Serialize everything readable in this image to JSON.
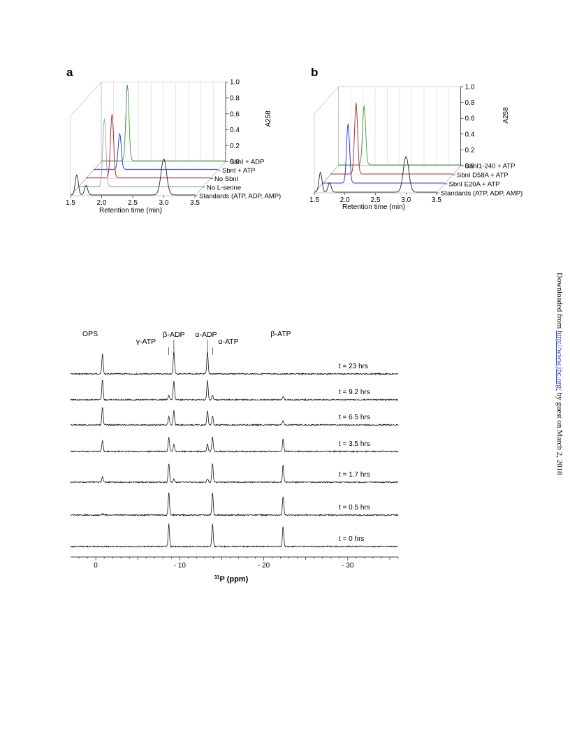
{
  "colors": {
    "green": "#3a9a3a",
    "red": "#b02020",
    "blue": "#1e2ee0",
    "grey": "#a0a0a0",
    "black": "#222222"
  },
  "panel_a": {
    "label": "a",
    "legend": [
      "SbnI + ADP",
      "SbnI + ATP",
      "No SbnI",
      "No L-serine",
      "Standards (ATP, ADP, AMP)"
    ],
    "xlabel": "Retention time (min)",
    "x_ticks": [
      "1.5",
      "2.0",
      "2.5",
      "3.0",
      "3.5"
    ],
    "z_label": "A258",
    "z_ticks": [
      "0.0",
      "0.2",
      "0.4",
      "0.6",
      "0.8",
      "1.0"
    ]
  },
  "panel_b": {
    "label": "b",
    "legend": [
      "SbnI1-240 + ATP",
      "SbnI D58A + ATP",
      "SbnI E20A + ATP",
      "Standards (ATP, ADP, AMP)"
    ],
    "xlabel": "Retention time (min)",
    "x_ticks": [
      "1.5",
      "2.0",
      "2.5",
      "3.0",
      "3.5"
    ],
    "z_label": "A258",
    "z_ticks": [
      "0.0",
      "0.2",
      "0.4",
      "0.6",
      "0.8",
      "1.0"
    ]
  },
  "nmr": {
    "peak_labels": [
      "OPS",
      "γ-ATP",
      "β-ADP",
      "α-ADP",
      "α-ATP",
      "β-ATP"
    ],
    "time_labels": [
      "t = 23 hrs",
      "t = 9.2 hrs",
      "t = 6.5 hrs",
      "t = 3.5 hrs",
      "t = 1.7 hrs",
      "t = 0.5 hrs",
      "t = 0 hrs"
    ],
    "x_ticks": [
      "0",
      "- 10",
      "- 20",
      "- 30"
    ],
    "xlabel_sup": "31",
    "xlabel_rest": "P (ppm)"
  },
  "chart_data": [
    {
      "type": "line",
      "panel": "a",
      "xlabel": "Retention time (min)",
      "zlabel": "A258",
      "xlim": [
        1.5,
        3.5
      ],
      "zlim": [
        0.0,
        1.0
      ],
      "series": [
        {
          "name": "SbnI + ADP",
          "color": "#3a9a3a",
          "peaks": [
            {
              "x": 1.92,
              "y": 0.95
            }
          ]
        },
        {
          "name": "SbnI + ATP",
          "color": "#1e2ee0",
          "peaks": [
            {
              "x": 1.92,
              "y": 0.45
            }
          ]
        },
        {
          "name": "No SbnI",
          "color": "#b02020",
          "peaks": [
            {
              "x": 1.92,
              "y": 0.8
            }
          ]
        },
        {
          "name": "No L-serine",
          "color": "#a0a0a0",
          "peaks": [
            {
              "x": 1.92,
              "y": 0.85
            }
          ]
        },
        {
          "name": "Standards (ATP, ADP, AMP)",
          "color": "#222222",
          "peaks": [
            {
              "x": 1.6,
              "y": 0.25
            },
            {
              "x": 1.75,
              "y": 0.12
            },
            {
              "x": 3.0,
              "y": 0.45
            }
          ]
        }
      ]
    },
    {
      "type": "line",
      "panel": "b",
      "xlabel": "Retention time (min)",
      "zlabel": "A258",
      "xlim": [
        1.5,
        3.5
      ],
      "zlim": [
        0.0,
        1.0
      ],
      "series": [
        {
          "name": "SbnI1-240 + ATP",
          "color": "#3a9a3a",
          "peaks": [
            {
              "x": 1.92,
              "y": 0.75
            }
          ]
        },
        {
          "name": "SbnI D58A + ATP",
          "color": "#b02020",
          "peaks": [
            {
              "x": 1.92,
              "y": 0.9
            }
          ]
        },
        {
          "name": "SbnI E20A + ATP",
          "color": "#1e2ee0",
          "peaks": [
            {
              "x": 1.92,
              "y": 0.75
            }
          ]
        },
        {
          "name": "Standards (ATP, ADP, AMP)",
          "color": "#222222",
          "peaks": [
            {
              "x": 1.6,
              "y": 0.25
            },
            {
              "x": 1.75,
              "y": 0.12
            },
            {
              "x": 3.0,
              "y": 0.45
            }
          ]
        }
      ]
    },
    {
      "type": "line",
      "panel": "nmr",
      "xlabel": "31P (ppm)",
      "xlim": [
        3,
        -36
      ],
      "peak_positions": {
        "OPS": -0.8,
        "γ-ATP": -8.7,
        "β-ADP": -9.3,
        "α-ADP": -13.3,
        "α-ATP": -13.9,
        "β-ATP": -22.3
      },
      "series": [
        {
          "name": "t = 23 hrs",
          "heights": {
            "OPS": 0.9,
            "γ-ATP": 0.0,
            "β-ADP": 1.0,
            "α-ADP": 1.0,
            "α-ATP": 0.0,
            "β-ATP": 0.0
          }
        },
        {
          "name": "t = 9.2 hrs",
          "heights": {
            "OPS": 0.9,
            "γ-ATP": 0.2,
            "β-ADP": 0.85,
            "α-ADP": 0.85,
            "α-ATP": 0.2,
            "β-ATP": 0.15
          }
        },
        {
          "name": "t = 6.5 hrs",
          "heights": {
            "OPS": 0.8,
            "γ-ATP": 0.4,
            "β-ADP": 0.65,
            "α-ADP": 0.65,
            "α-ATP": 0.4,
            "β-ATP": 0.2
          }
        },
        {
          "name": "t = 3.5 hrs",
          "heights": {
            "OPS": 0.5,
            "γ-ATP": 0.65,
            "β-ADP": 0.35,
            "α-ADP": 0.35,
            "α-ATP": 0.65,
            "β-ATP": 0.55
          }
        },
        {
          "name": "t = 1.7 hrs",
          "heights": {
            "OPS": 0.25,
            "γ-ATP": 0.85,
            "β-ADP": 0.15,
            "α-ADP": 0.15,
            "α-ATP": 0.85,
            "β-ATP": 0.75
          }
        },
        {
          "name": "t = 0.5 hrs",
          "heights": {
            "OPS": 0.05,
            "γ-ATP": 1.0,
            "β-ADP": 0.0,
            "α-ADP": 0.0,
            "α-ATP": 1.0,
            "β-ATP": 0.85
          }
        },
        {
          "name": "t = 0 hrs",
          "heights": {
            "OPS": 0.0,
            "γ-ATP": 1.0,
            "β-ADP": 0.0,
            "α-ADP": 0.0,
            "α-ATP": 1.0,
            "β-ATP": 0.9
          }
        }
      ]
    }
  ],
  "side_note": {
    "prefix": "Downloaded from ",
    "link": "http://www.jbc.org/",
    "suffix": " by guest on March 2, 2018"
  }
}
